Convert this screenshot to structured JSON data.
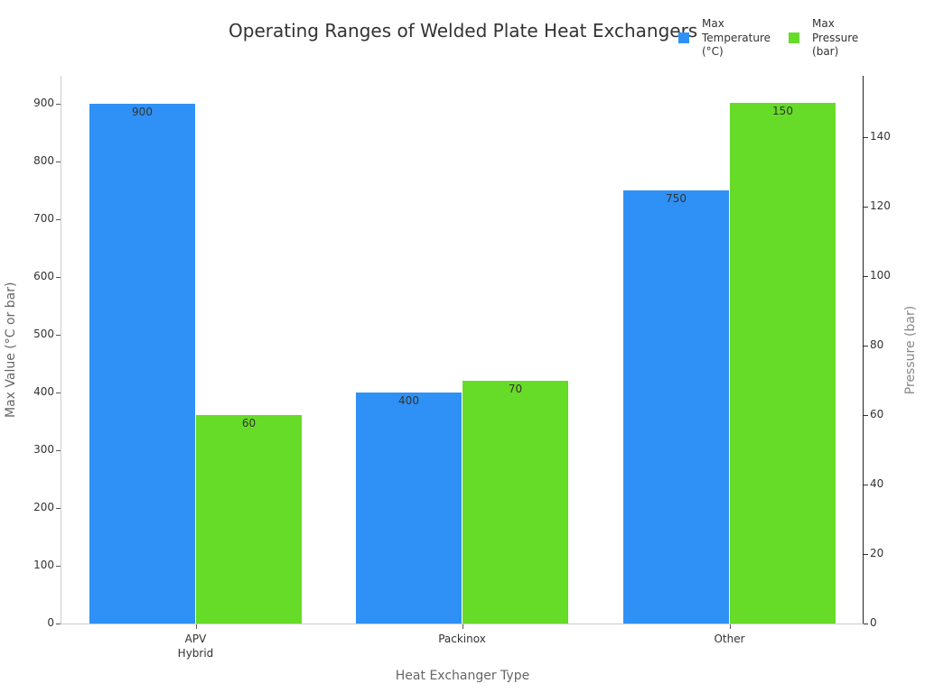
{
  "chart_data": {
    "type": "bar",
    "title": "Operating Ranges of Welded Plate Heat Exchangers",
    "xlabel": "Heat Exchanger Type",
    "ylabel": "Max Value (°C or bar)",
    "ylabel_right": "Pressure (bar)",
    "categories": [
      "APV\nHybrid",
      "Packinox",
      "Other"
    ],
    "series": [
      {
        "name": "Max Temperature (°C)",
        "axis": "left",
        "color": "#2f91f5",
        "values": [
          900,
          400,
          750
        ]
      },
      {
        "name": "Max Pressure (bar)",
        "axis": "right",
        "color": "#66db28",
        "values": [
          60,
          70,
          150
        ]
      }
    ],
    "ylim": [
      0,
      950
    ],
    "ylim_right": [
      0,
      157
    ],
    "yticks_left": [
      0,
      100,
      200,
      300,
      400,
      500,
      600,
      700,
      800,
      900
    ],
    "yticks_right": [
      0,
      20,
      40,
      60,
      80,
      100,
      120,
      140
    ],
    "legend_position": "top-right",
    "grid": false
  },
  "legend": {
    "items": [
      {
        "label": "Max\nTemperature\n(°C)",
        "color": "#2f91f5"
      },
      {
        "label": "Max\nPressure\n(bar)",
        "color": "#66db28"
      }
    ]
  }
}
